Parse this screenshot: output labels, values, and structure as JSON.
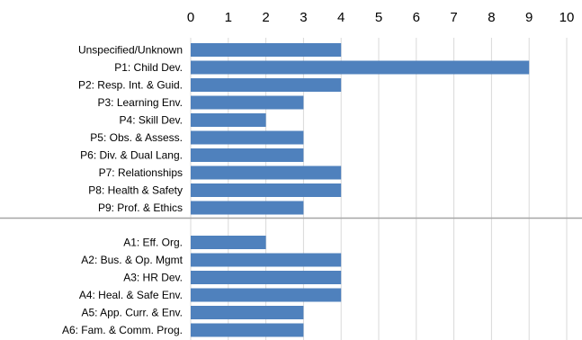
{
  "chart_data": {
    "type": "bar",
    "orientation": "horizontal",
    "title": "",
    "xlabel": "",
    "ylabel": "",
    "xlim": [
      0,
      10
    ],
    "xticks": [
      "0",
      "1",
      "2",
      "3",
      "4",
      "5",
      "6",
      "7",
      "8",
      "9",
      "10"
    ],
    "x_axis_position": "top",
    "grid": true,
    "legend": "none",
    "bar_color": "#4f81bd",
    "groups": [
      {
        "categories": [
          "Unspecified/Unknown",
          "P1: Child Dev.",
          "P2: Resp. Int. & Guid.",
          "P3: Learning Env.",
          "P4: Skill Dev.",
          "P5: Obs. & Assess.",
          "P6: Div. & Dual Lang.",
          "P7: Relationships",
          "P8: Health & Safety",
          "P9: Prof. & Ethics"
        ],
        "values": [
          4,
          9,
          4,
          3,
          2,
          3,
          3,
          4,
          4,
          3
        ]
      },
      {
        "categories": [
          "A1: Eff. Org.",
          "A2: Bus. & Op. Mgmt",
          "A3: HR Dev.",
          "A4: Heal. & Safe Env.",
          "A5: App. Curr. & Env.",
          "A6: Fam. & Comm. Prog."
        ],
        "values": [
          2,
          4,
          4,
          4,
          3,
          3
        ]
      }
    ]
  }
}
